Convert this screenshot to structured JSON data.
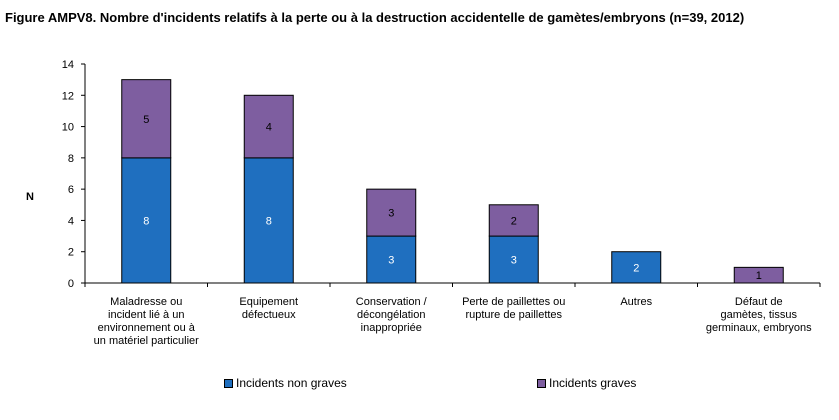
{
  "title": "Figure AMPV8. Nombre d'incidents relatifs à la perte ou à la destruction accidentelle de gamètes/embryons (n=39, 2012)",
  "chart_data": {
    "type": "bar",
    "stacked": true,
    "ylabel": "N",
    "xlabel": "",
    "ylim": [
      0,
      14
    ],
    "yticks": [
      0,
      2,
      4,
      6,
      8,
      10,
      12,
      14
    ],
    "grid": false,
    "legend_position": "bottom",
    "categories": [
      [
        "Maladresse ou",
        "incident lié à un",
        "environnement ou à",
        "un matériel particulier"
      ],
      [
        "Equipement",
        "défectueux"
      ],
      [
        "Conservation /",
        "décongélation",
        "inappropriée"
      ],
      [
        "Perte de paillettes ou",
        "rupture de paillettes"
      ],
      [
        "Autres"
      ],
      [
        "Défaut de",
        "gamètes, tissus",
        "germinaux, embryons"
      ]
    ],
    "series": [
      {
        "name": "Incidents non graves",
        "color": "#1F6FBF",
        "values": [
          8,
          8,
          3,
          3,
          2,
          0
        ]
      },
      {
        "name": "Incidents graves",
        "color": "#7E5EA0",
        "values": [
          5,
          4,
          3,
          2,
          0,
          1
        ]
      }
    ]
  }
}
